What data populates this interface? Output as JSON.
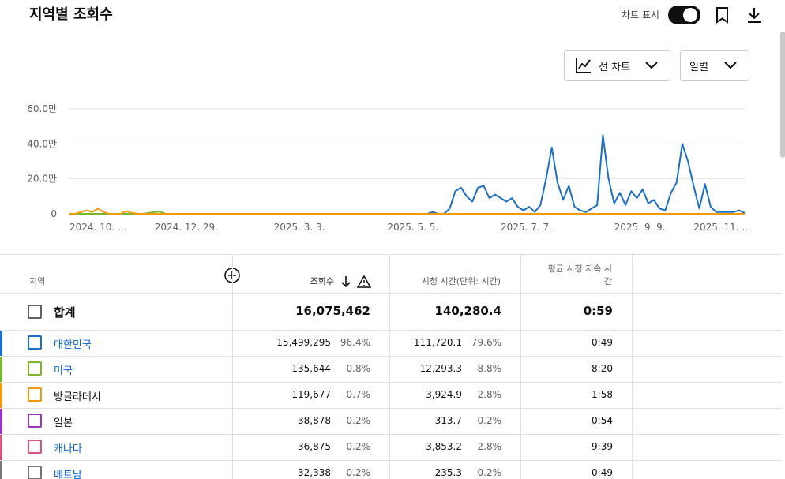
{
  "header": {
    "title": "지역별 조회수",
    "toggle_label": "차트 표시"
  },
  "controls": {
    "chart_type": "선 차트",
    "interval": "일별"
  },
  "chart_data": {
    "type": "line",
    "categories": [
      "2024. 10. ...",
      null,
      null,
      null,
      null,
      null,
      null,
      null,
      null,
      null,
      null,
      null,
      null,
      null,
      null,
      "2024. 12. 29.",
      null,
      null,
      null,
      null,
      null,
      null,
      null,
      null,
      null,
      null,
      null,
      null,
      null,
      null,
      null,
      null,
      null,
      null,
      null,
      null,
      "2025. 3. 3.",
      null,
      null,
      null,
      null,
      null,
      null,
      null,
      null,
      null,
      null,
      null,
      null,
      null,
      null,
      null,
      null,
      null,
      null,
      null,
      "2025. 5. 5.",
      null,
      null,
      null,
      null,
      null,
      null,
      null,
      null,
      null,
      null,
      null,
      null,
      null,
      null,
      null,
      null,
      null,
      null,
      null,
      "2025. 7. 7.",
      null,
      null,
      null,
      null,
      null,
      null,
      null,
      null,
      null,
      null,
      null,
      null,
      null,
      null,
      null,
      null,
      null,
      null,
      null,
      "2025. 9. 9.",
      null,
      null,
      null,
      null,
      null,
      null,
      null,
      null,
      null,
      null,
      null,
      null,
      null,
      "2025. 11. ...",
      null,
      null,
      null,
      null,
      null,
      null,
      null,
      null,
      null
    ],
    "ylim": [
      0,
      60
    ],
    "yticks": [
      0,
      {
        "value": 20,
        "label": "20.0만"
      },
      {
        "value": 40,
        "label": "40.0만"
      },
      {
        "value": 60,
        "label": "60.0만"
      }
    ],
    "grid": true,
    "series": [
      {
        "color": "#1a6fc9",
        "values": [
          0,
          0,
          0,
          0,
          0,
          0,
          0,
          0,
          0,
          0,
          0,
          0,
          0,
          0,
          0,
          0,
          0,
          0,
          0,
          0,
          0,
          0,
          0,
          0,
          0,
          0,
          0,
          0,
          0,
          0,
          0,
          0,
          0,
          0,
          0,
          0,
          0,
          0,
          0,
          0,
          0,
          0,
          0,
          0,
          0,
          0,
          0,
          0,
          0,
          0,
          0,
          0,
          0,
          0,
          0,
          0,
          0,
          0,
          0,
          0,
          0,
          0,
          0,
          0,
          1,
          0,
          0,
          3,
          13,
          15,
          10,
          7,
          15,
          16,
          9,
          11,
          9,
          7,
          9,
          4,
          2,
          4,
          1,
          5,
          20,
          38,
          18,
          8,
          16,
          4,
          2,
          1,
          3,
          5,
          45,
          20,
          6,
          12,
          5,
          13,
          9,
          14,
          6,
          8,
          3,
          2,
          12,
          18,
          40,
          30,
          16,
          3,
          17,
          4,
          1,
          1,
          1,
          1,
          2,
          0.5
        ]
      },
      {
        "color": "#76b82a",
        "values": [
          0,
          0,
          0,
          0,
          0,
          0,
          0,
          0,
          0,
          0,
          0,
          0,
          0,
          0,
          0.5,
          1,
          1.2,
          0,
          0,
          0,
          0,
          0,
          0,
          0,
          0,
          0,
          0,
          0,
          0,
          0,
          0,
          0,
          0,
          0,
          0,
          0,
          0,
          0,
          0,
          0,
          0,
          0,
          0,
          0,
          0,
          0,
          0,
          0,
          0,
          0,
          0,
          0,
          0,
          0,
          0,
          0,
          0,
          0,
          0,
          0,
          0,
          0,
          0,
          0,
          0,
          0,
          0,
          0,
          0,
          0,
          0,
          0,
          0,
          0,
          0,
          0,
          0,
          0,
          0,
          0,
          0,
          0,
          0,
          0,
          0,
          0,
          0,
          0,
          0,
          0,
          0,
          0,
          0,
          0,
          0,
          0,
          0,
          0,
          0,
          0,
          0,
          0,
          0,
          0,
          0,
          0,
          0,
          0,
          0,
          0,
          0,
          0,
          0,
          0,
          0,
          0,
          0,
          0,
          0,
          0
        ]
      },
      {
        "color": "#f29a0e",
        "values": [
          0,
          0,
          1,
          2,
          1,
          3,
          1,
          0,
          0,
          0,
          1.5,
          0.5,
          0,
          0,
          0,
          0,
          0,
          0,
          0,
          0,
          0,
          0,
          0,
          0,
          0,
          0,
          0,
          0,
          0,
          0,
          0,
          0,
          0,
          0,
          0,
          0,
          0,
          0,
          0,
          0,
          0,
          0,
          0,
          0,
          0,
          0,
          0,
          0,
          0,
          0,
          0,
          0,
          0,
          0,
          0,
          0,
          0,
          0,
          0,
          0,
          0,
          0,
          0,
          0,
          0,
          0,
          0,
          0,
          0,
          0,
          0,
          0,
          0,
          0,
          0,
          0,
          0,
          0,
          0,
          0,
          0,
          0,
          0,
          0,
          0,
          0,
          0,
          0,
          0,
          0,
          0,
          0,
          0,
          0,
          0,
          0,
          0,
          0,
          0,
          0,
          0,
          0,
          0,
          0,
          0,
          0,
          0,
          0,
          0,
          0,
          0,
          0,
          0,
          0,
          0,
          0,
          0,
          0,
          0,
          0
        ]
      }
    ]
  },
  "table": {
    "columns": [
      "지역",
      "조회수",
      "시청 시간(단위: 시간)",
      "평균 시청 지속 시간"
    ],
    "total": [
      "합계",
      "16,075,462",
      "140,280.4",
      "0:59"
    ],
    "rows": [
      {
        "region": "대한민국",
        "views": "15,499,295",
        "views_share": "96.4%",
        "watch_time": "111,720.1",
        "watch_share": "79.6%",
        "avg_duration": "0:49",
        "color": "#1a6fc9",
        "link": true
      },
      {
        "region": "미국",
        "views": "135,644",
        "views_share": "0.8%",
        "watch_time": "12,293.3",
        "watch_share": "8.8%",
        "avg_duration": "8:20",
        "color": "#76b82a",
        "link": true
      },
      {
        "region": "방글라데시",
        "views": "119,677",
        "views_share": "0.7%",
        "watch_time": "3,924.9",
        "watch_share": "2.8%",
        "avg_duration": "1:58",
        "color": "#f29a0e",
        "link": false
      },
      {
        "region": "일본",
        "views": "38,878",
        "views_share": "0.2%",
        "watch_time": "313.7",
        "watch_share": "0.2%",
        "avg_duration": "0:54",
        "color": "#9a35c4",
        "link": false
      },
      {
        "region": "캐나다",
        "views": "36,875",
        "views_share": "0.2%",
        "watch_time": "3,853.2",
        "watch_share": "2.8%",
        "avg_duration": "9:39",
        "color": "#d6557a",
        "link": true
      },
      {
        "region": "베트남",
        "views": "32,338",
        "views_share": "0.2%",
        "watch_time": "235.3",
        "watch_share": "0.2%",
        "avg_duration": "0:49",
        "color": "#777777",
        "link": true
      }
    ]
  }
}
